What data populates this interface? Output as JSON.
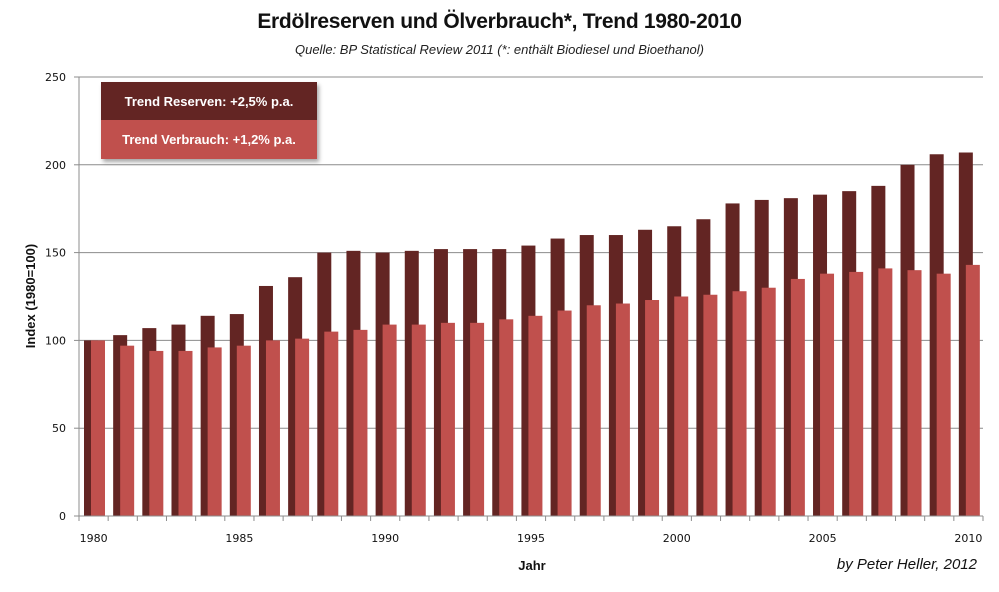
{
  "chart_data": {
    "type": "bar",
    "title": "Erdölreserven und Ölverbrauch*, Trend 1980-2010",
    "subtitle": "Quelle: BP Statistical Review 2011 (*: enthält Biodiesel und Bioethanol)",
    "xlabel": "Jahr",
    "ylabel": "Index (1980=100)",
    "ylim": [
      0,
      250
    ],
    "yticks": [
      0,
      50,
      100,
      150,
      200,
      250
    ],
    "grid": true,
    "categories": [
      "1980",
      "1981",
      "1982",
      "1983",
      "1984",
      "1985",
      "1986",
      "1987",
      "1988",
      "1989",
      "1990",
      "1991",
      "1992",
      "1993",
      "1994",
      "1995",
      "1996",
      "1997",
      "1998",
      "1999",
      "2000",
      "2001",
      "2002",
      "2003",
      "2004",
      "2005",
      "2006",
      "2007",
      "2008",
      "2009",
      "2010"
    ],
    "xtick_labels": [
      "1980",
      "1985",
      "1990",
      "1995",
      "2000",
      "2005",
      "2010"
    ],
    "series": [
      {
        "name": "Reserven",
        "color": "#632523",
        "values": [
          100,
          103,
          107,
          109,
          114,
          115,
          131,
          136,
          150,
          151,
          150,
          151,
          152,
          152,
          152,
          154,
          158,
          160,
          160,
          163,
          165,
          169,
          178,
          180,
          181,
          183,
          185,
          188,
          200,
          206,
          207
        ]
      },
      {
        "name": "Verbrauch",
        "color": "#C0504D",
        "values": [
          100,
          97,
          94,
          94,
          96,
          97,
          100,
          101,
          105,
          106,
          109,
          109,
          110,
          110,
          112,
          114,
          117,
          120,
          121,
          123,
          125,
          126,
          128,
          130,
          135,
          138,
          139,
          141,
          140,
          138,
          143
        ]
      }
    ],
    "legend": {
      "placement": "top-left",
      "entries": [
        {
          "label": "Trend Reserven: +2,5% p.a.",
          "color": "#632523"
        },
        {
          "label": "Trend Verbrauch: +1,2% p.a.",
          "color": "#C0504D"
        }
      ]
    },
    "annotation": "by Peter Heller, 2012"
  }
}
